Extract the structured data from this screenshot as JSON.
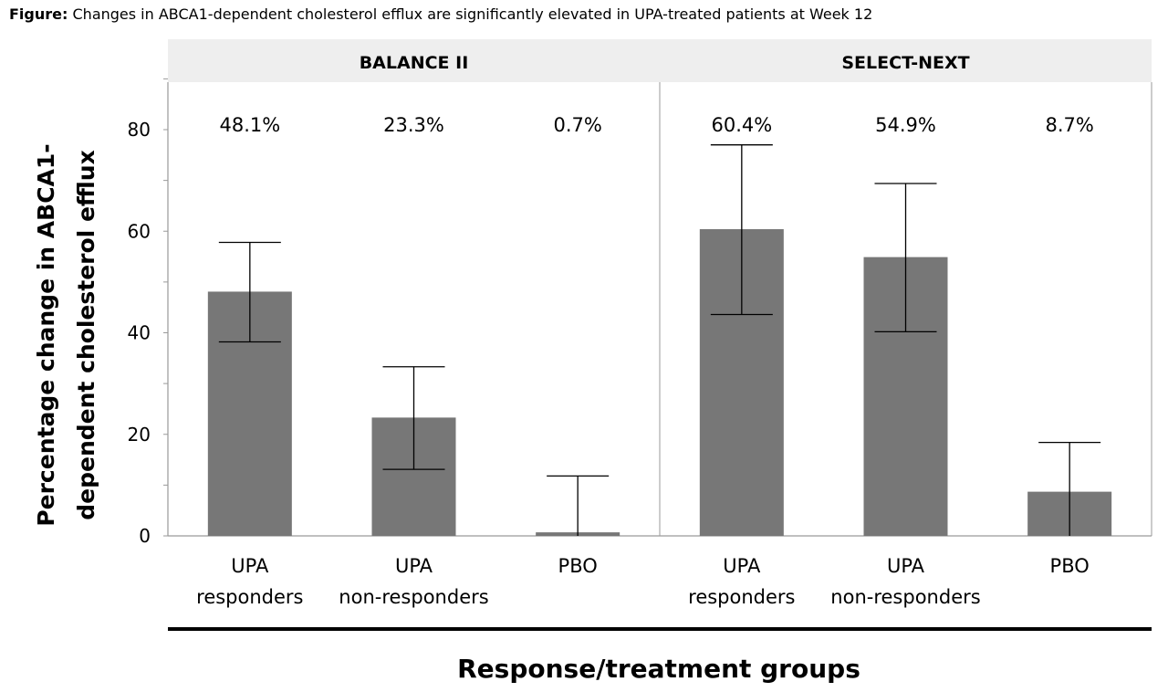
{
  "caption": {
    "prefix": "Figure:",
    "text": "Changes in ABCA1-dependent cholesterol efflux are significantly elevated in UPA-treated patients at Week 12"
  },
  "chart_data": {
    "type": "bar",
    "ylabel_lines": [
      "Percentage change in ABCA1-",
      "dependent cholesterol efflux"
    ],
    "xlabel": "Response/treatment groups",
    "ylim": [
      0,
      90
    ],
    "yticks": [
      0,
      20,
      40,
      60,
      80
    ],
    "grid": false,
    "panels": [
      {
        "title": "BALANCE II",
        "categories": [
          [
            "UPA",
            "responders"
          ],
          [
            "UPA",
            "non-responders"
          ],
          [
            "PBO"
          ]
        ],
        "values": [
          48.1,
          23.3,
          0.7
        ],
        "labels": [
          "48.1%",
          "23.3%",
          "0.7%"
        ],
        "err_low": [
          38.2,
          13.1,
          0
        ],
        "err_high": [
          57.8,
          33.3,
          11.8
        ]
      },
      {
        "title": "SELECT-NEXT",
        "categories": [
          [
            "UPA",
            "responders"
          ],
          [
            "UPA",
            "non-responders"
          ],
          [
            "PBO"
          ]
        ],
        "values": [
          60.4,
          54.9,
          8.7
        ],
        "labels": [
          "60.4%",
          "54.9%",
          "8.7%"
        ],
        "err_low": [
          43.6,
          40.2,
          0
        ],
        "err_high": [
          77.0,
          69.4,
          18.4
        ]
      }
    ],
    "colors": {
      "bar": "#777777",
      "header": "#eeeeee",
      "axis": "#9a9a9a",
      "rule": "#000000"
    }
  }
}
